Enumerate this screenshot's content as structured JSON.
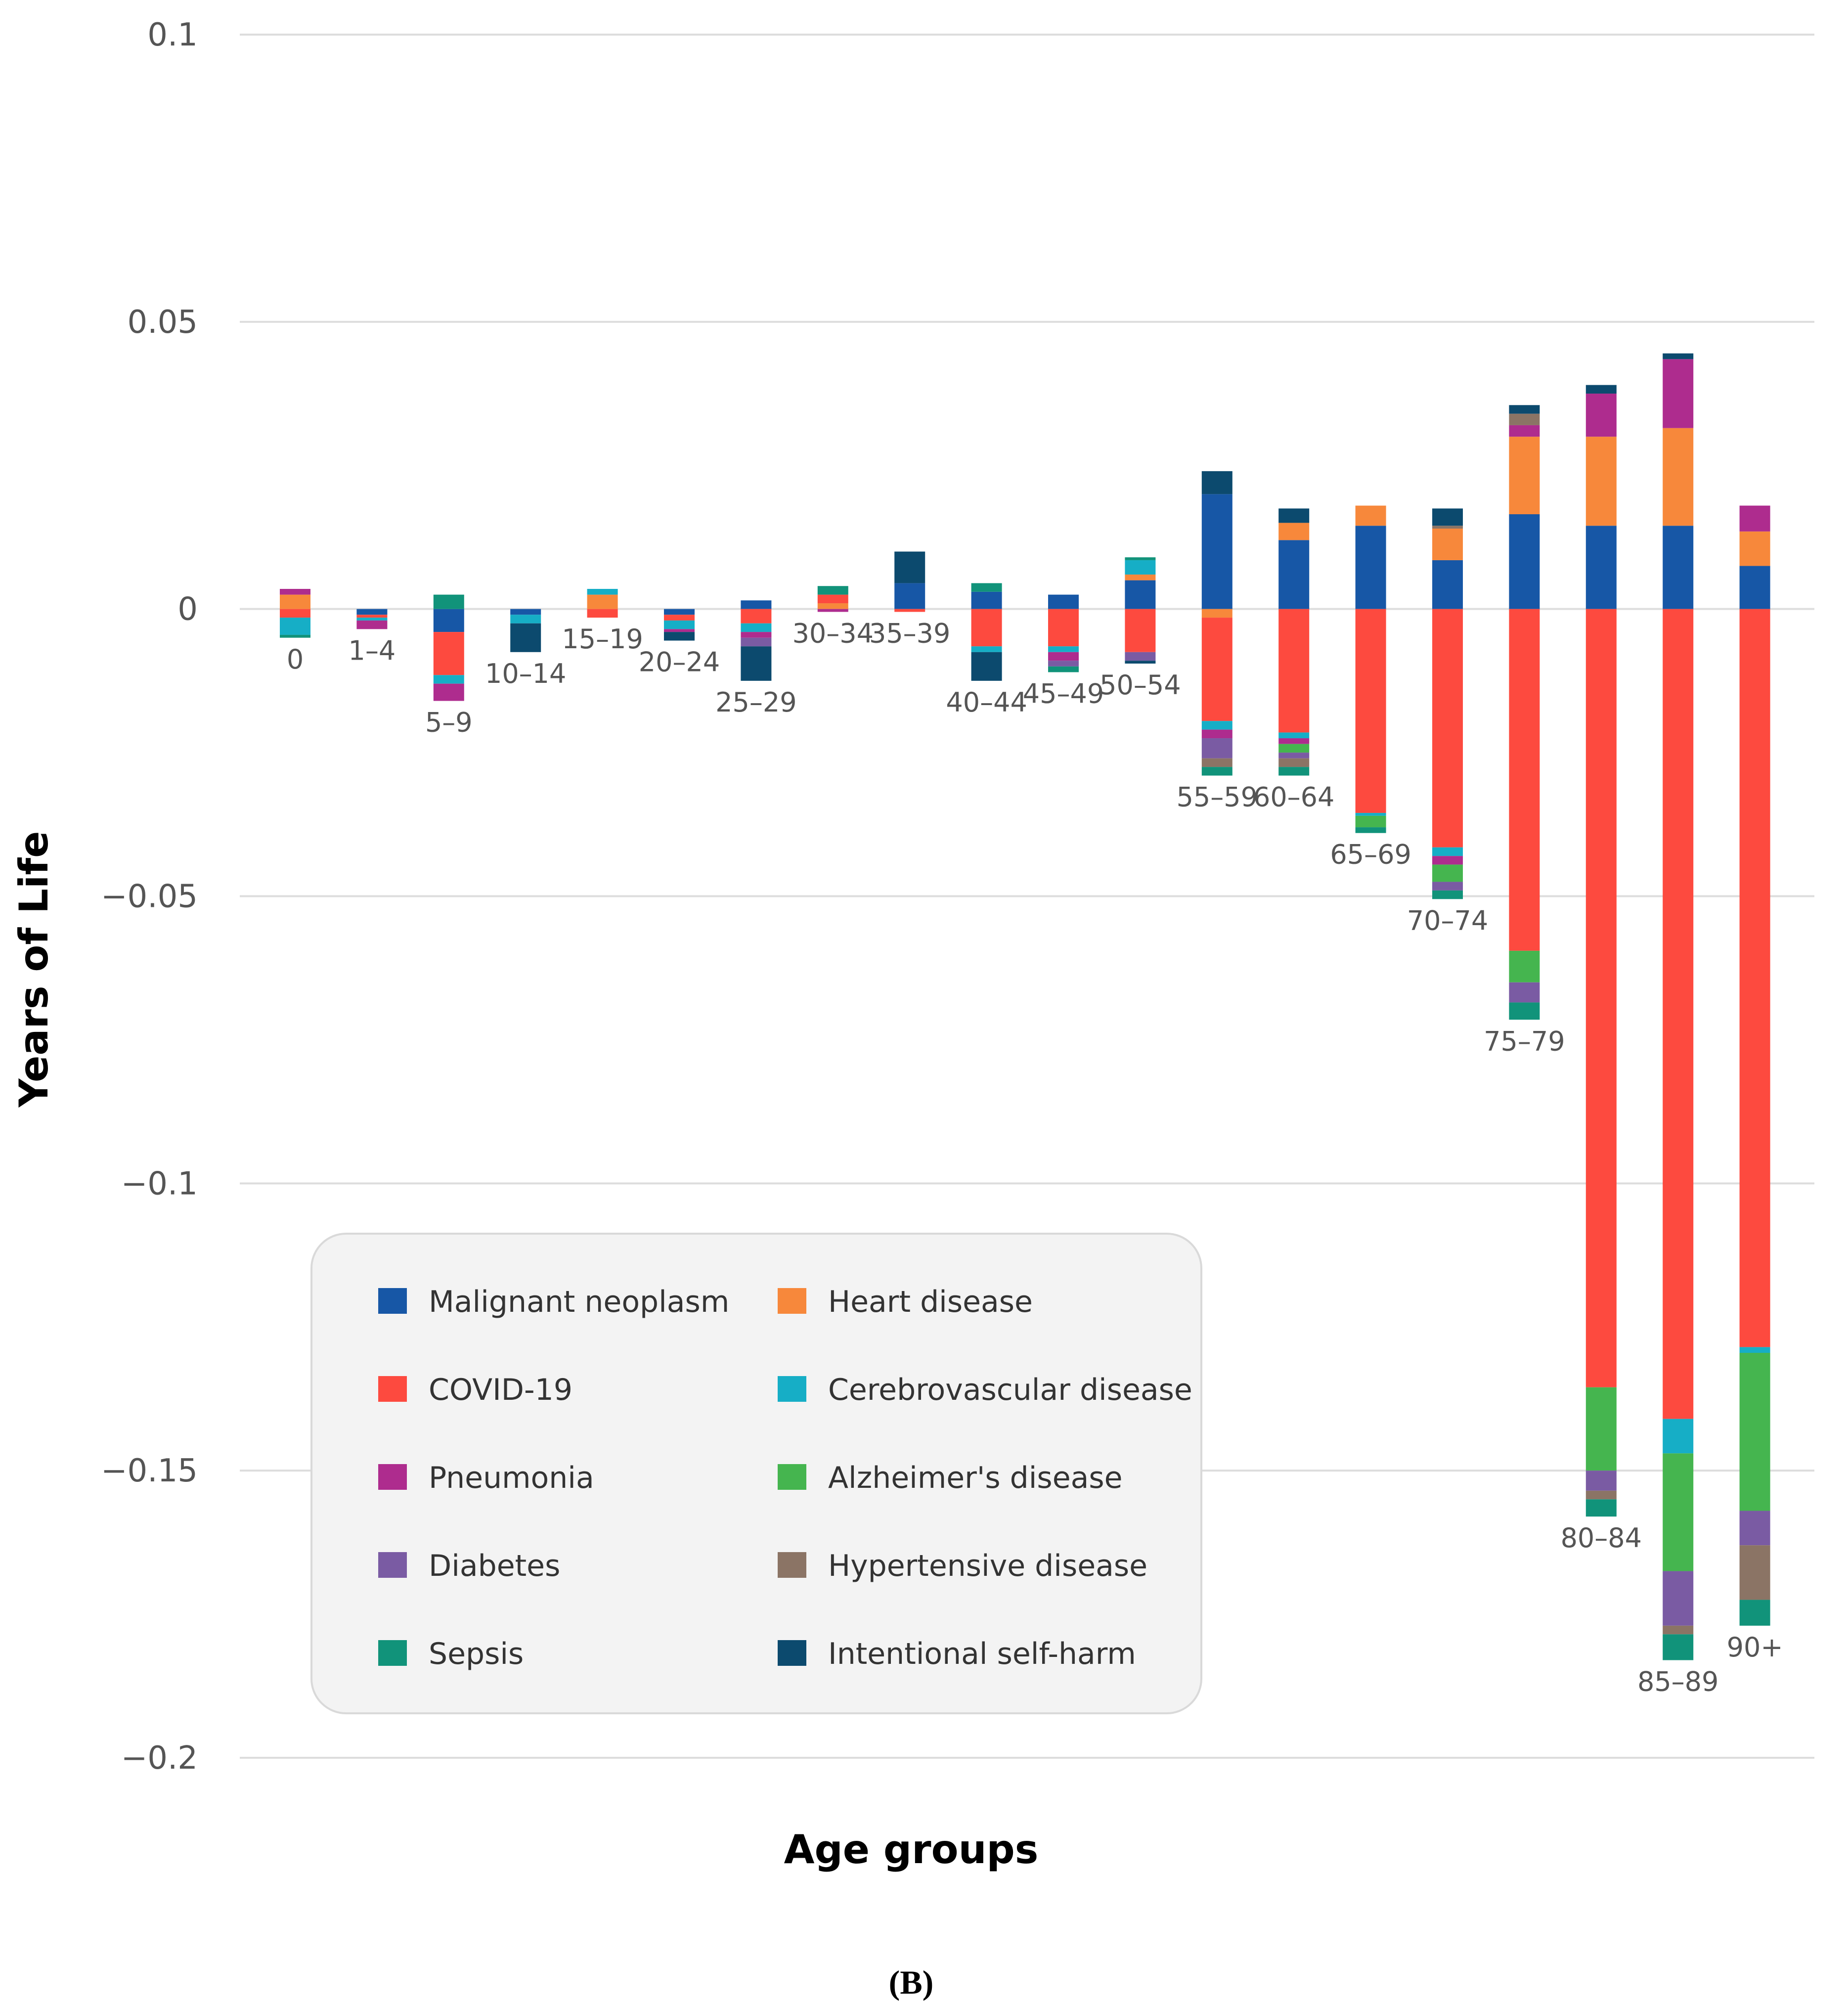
{
  "chart_data": {
    "type": "bar",
    "stacked": true,
    "xlabel": "Age groups",
    "ylabel": "Years of Life",
    "caption": "(B)",
    "ylim": [
      -0.2,
      0.1
    ],
    "yticks": [
      0.1,
      0.05,
      0,
      -0.05,
      -0.1,
      -0.15,
      -0.2
    ],
    "ytick_labels": [
      "0.1",
      "0.05",
      "0",
      "−0.05",
      "−0.1",
      "−0.15",
      "−0.2"
    ],
    "grid": true,
    "legend_position": "bottom-left",
    "categories": [
      "0",
      "1–4",
      "5–9",
      "10–14",
      "15–19",
      "20–24",
      "25–29",
      "30–34",
      "35–39",
      "40–44",
      "45–49",
      "50–54",
      "55–59",
      "60–64",
      "65–69",
      "70–74",
      "75–79",
      "80–84",
      "85–89",
      "90+"
    ],
    "series": [
      {
        "name": "Malignant neoplasm",
        "color": "#1757a6",
        "values": [
          0,
          -0.001,
          -0.004,
          -0.001,
          0,
          -0.001,
          0.0015,
          0,
          0.0045,
          0.003,
          0.0025,
          0.005,
          0.02,
          0.012,
          0.0145,
          0.0085,
          0.0165,
          0.0145,
          0.0145,
          0.0075
        ]
      },
      {
        "name": "Heart disease",
        "color": "#f7883b",
        "values": [
          0.0025,
          0,
          0,
          0,
          0.0025,
          0,
          0,
          0.001,
          0,
          0,
          0,
          0.001,
          -0.0015,
          0.003,
          0.0035,
          0.0055,
          0.0135,
          0.0155,
          0.017,
          0.006
        ]
      },
      {
        "name": "COVID-19",
        "color": "#fd4a3f",
        "values": [
          -0.0015,
          -0.0005,
          -0.0075,
          0,
          -0.0015,
          -0.001,
          -0.0025,
          0.0015,
          -0.0005,
          -0.0065,
          -0.0065,
          -0.0075,
          -0.018,
          -0.0215,
          -0.0355,
          -0.0415,
          -0.0595,
          -0.1355,
          -0.141,
          -0.1285
        ]
      },
      {
        "name": "Cerebrovascular disease",
        "color": "#16aec6",
        "values": [
          -0.003,
          -0.0005,
          -0.0015,
          -0.0015,
          0.001,
          -0.0015,
          -0.0015,
          0,
          0,
          -0.001,
          -0.001,
          0.0025,
          -0.0015,
          -0.001,
          -0.0005,
          -0.0015,
          0,
          0,
          -0.006,
          -0.001
        ]
      },
      {
        "name": "Pneumonia",
        "color": "#ae2c8e",
        "values": [
          0.001,
          -0.0015,
          -0.003,
          0,
          0,
          -0.0005,
          -0.001,
          -0.0005,
          0,
          0,
          -0.0015,
          0,
          -0.0015,
          -0.001,
          0,
          -0.0015,
          0.002,
          0.0075,
          0.012,
          0.0045
        ]
      },
      {
        "name": "Alzheimer's disease",
        "color": "#45b54f",
        "values": [
          0,
          0,
          0,
          0,
          0,
          0,
          0,
          0,
          0,
          0,
          0,
          0,
          0,
          -0.0015,
          -0.002,
          -0.003,
          -0.0055,
          -0.0145,
          -0.0205,
          -0.0275
        ]
      },
      {
        "name": "Diabetes",
        "color": "#7a5ba3",
        "values": [
          0,
          0,
          0,
          0,
          0,
          0,
          -0.0015,
          0,
          0,
          0,
          -0.001,
          -0.0015,
          -0.0035,
          -0.001,
          0,
          -0.0015,
          -0.0035,
          -0.0035,
          -0.0095,
          -0.006
        ]
      },
      {
        "name": "Hypertensive disease",
        "color": "#8b7465",
        "values": [
          0,
          0,
          0,
          0,
          0,
          0,
          0,
          0,
          0,
          0,
          0,
          0,
          -0.0015,
          -0.0015,
          0,
          0.0005,
          0.002,
          -0.0015,
          -0.0015,
          -0.0095
        ]
      },
      {
        "name": "Sepsis",
        "color": "#11937a",
        "values": [
          -0.0005,
          0,
          0.0025,
          0,
          0,
          0,
          0,
          0.0015,
          0,
          0.0015,
          -0.001,
          0.0005,
          -0.0015,
          -0.0015,
          -0.001,
          -0.0015,
          -0.003,
          -0.003,
          -0.0045,
          -0.0045
        ]
      },
      {
        "name": "Intentional self-harm",
        "color": "#0c4a6e",
        "values": [
          0,
          0,
          0,
          -0.005,
          0,
          -0.0015,
          -0.006,
          0,
          0.0055,
          -0.005,
          0,
          -0.0005,
          0.004,
          0.0025,
          0,
          0.003,
          0.0015,
          0.0015,
          0.001,
          0
        ]
      }
    ],
    "legend_order": [
      [
        "Malignant neoplasm",
        "Heart disease"
      ],
      [
        "COVID-19",
        "Cerebrovascular disease"
      ],
      [
        "Pneumonia",
        "Alzheimer's disease"
      ],
      [
        "Diabetes",
        "Hypertensive disease"
      ],
      [
        "Sepsis",
        "Intentional self-harm"
      ]
    ]
  }
}
